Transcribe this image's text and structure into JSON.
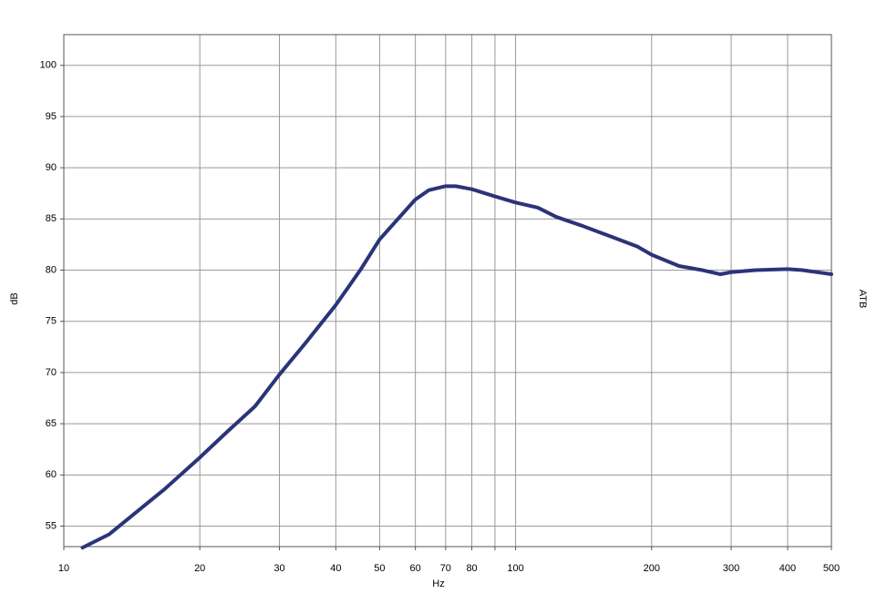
{
  "chart_data": {
    "type": "line",
    "xlabel": "Hz",
    "ylabel": "dB",
    "y2label": "ATB",
    "xscale": "log",
    "x": [
      11,
      12.6,
      14.5,
      16.7,
      20,
      23.1,
      26.5,
      30,
      34.3,
      40,
      45.3,
      50,
      60,
      64.2,
      70,
      73.7,
      80,
      90,
      100,
      112,
      123,
      141,
      162,
      186,
      200,
      230,
      259,
      284,
      300,
      340,
      400,
      431,
      500
    ],
    "series": [
      {
        "color": "#2b3478",
        "values": [
          52.9,
          54.2,
          56.4,
          58.6,
          61.7,
          64.3,
          66.7,
          69.8,
          72.9,
          76.6,
          80.0,
          83.0,
          86.9,
          87.8,
          88.2,
          88.2,
          87.9,
          87.2,
          86.6,
          86.1,
          85.2,
          84.3,
          83.3,
          82.3,
          81.5,
          80.4,
          80.0,
          79.6,
          79.8,
          80.0,
          80.1,
          80.0,
          79.6
        ]
      }
    ],
    "xlim": [
      10,
      500
    ],
    "xticks": [
      10,
      20,
      30,
      40,
      50,
      60,
      70,
      80,
      {
        "value": 90,
        "label": null
      },
      100,
      200,
      300,
      400,
      500
    ],
    "ylim": [
      53,
      103
    ],
    "yticks": [
      55,
      60,
      65,
      70,
      75,
      80,
      85,
      90,
      95,
      100
    ],
    "grid": true
  }
}
